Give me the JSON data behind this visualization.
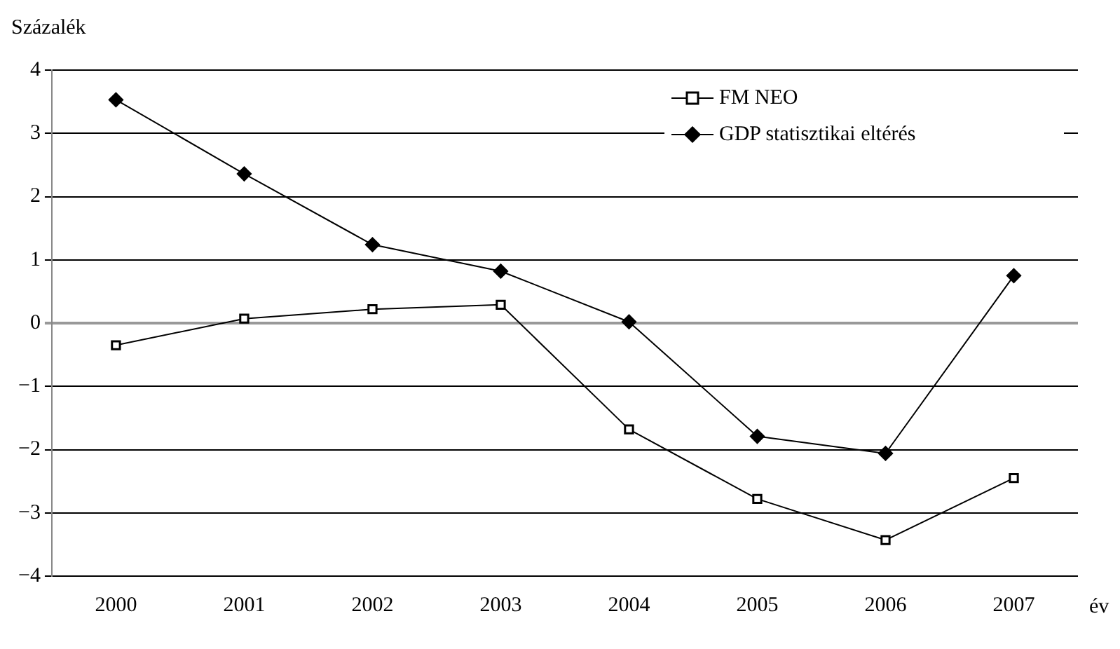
{
  "chart_data": {
    "type": "line",
    "ylabel": "Százalék",
    "xlabel": "év",
    "categories": [
      "2000",
      "2001",
      "2002",
      "2003",
      "2004",
      "2005",
      "2006",
      "2007"
    ],
    "series": [
      {
        "name": "FM NEO",
        "color": "#000000",
        "marker": "square",
        "values": [
          -0.35,
          0.07,
          0.22,
          0.29,
          -1.68,
          -2.78,
          -3.43,
          -2.45
        ]
      },
      {
        "name": "GDP statisztikai eltérés",
        "color": "#000000",
        "marker": "diamond",
        "values": [
          3.53,
          2.36,
          1.24,
          0.82,
          0.02,
          -1.79,
          -2.06,
          0.75
        ]
      }
    ],
    "ylim": [
      -4,
      4
    ],
    "yticks": [
      {
        "value": -4,
        "label": "−4"
      },
      {
        "value": -3,
        "label": "−3"
      },
      {
        "value": -2,
        "label": "−2"
      },
      {
        "value": -1,
        "label": "−1"
      },
      0,
      1,
      2,
      3,
      4
    ],
    "grid": "y",
    "legend": "top right",
    "line_style": "solid"
  }
}
